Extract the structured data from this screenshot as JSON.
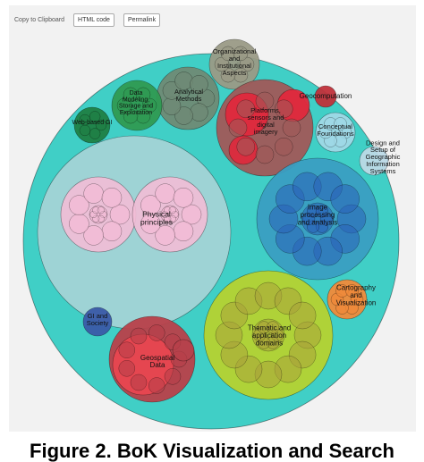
{
  "toolbar": {
    "copy_label": "Copy to Clipboard",
    "html_code_label": "HTML code",
    "permalink_label": "Permalink"
  },
  "viz": {
    "labels": {
      "organizational": "Organizational and Institutional Aspects",
      "analytical": "Analytical Methods",
      "data_modeling": "Data Modeling, Storage and Exploitation",
      "web_based": "Web-based GI",
      "platforms": "Platforms, sensors and digital imagery",
      "geocomputation": "Geocomputation",
      "conceptual": "Conceptual Foundations",
      "design_setup": "Design and Setup of Geographic Information Systems",
      "physical": "Physical principles",
      "image_processing": "Image processing and analysis",
      "cartography": "Cartography and Visualization",
      "gi_society": "GI and Society",
      "thematic": "Thematic and application domains",
      "geospatial": "Geospatial Data"
    },
    "colors": {
      "outer": "#40cfc6",
      "physical": "#a9d3d6",
      "physical_inner": "#f2bcd6",
      "organizational": "#9a9a86",
      "analytical": "#6f8a75",
      "data_modeling": "#2f9a52",
      "web_based": "#1f7f45",
      "platforms": "#a05858",
      "platforms_red": "#e0283c",
      "geocomputation": "#c0303a",
      "conceptual": "#9fd8e6",
      "design_setup": "#bcd9e6",
      "image_processing": "#3a9ec2",
      "image_inner": "#2a62b8",
      "cartography": "#f08a3a",
      "gi_society": "#3a5aa8",
      "thematic": "#b5d230",
      "thematic_inner": "#a9a23a",
      "geospatial": "#b8404a",
      "geospatial_inner": "#ea4650"
    }
  },
  "caption": "Figure 2. BoK Visualization and Search"
}
